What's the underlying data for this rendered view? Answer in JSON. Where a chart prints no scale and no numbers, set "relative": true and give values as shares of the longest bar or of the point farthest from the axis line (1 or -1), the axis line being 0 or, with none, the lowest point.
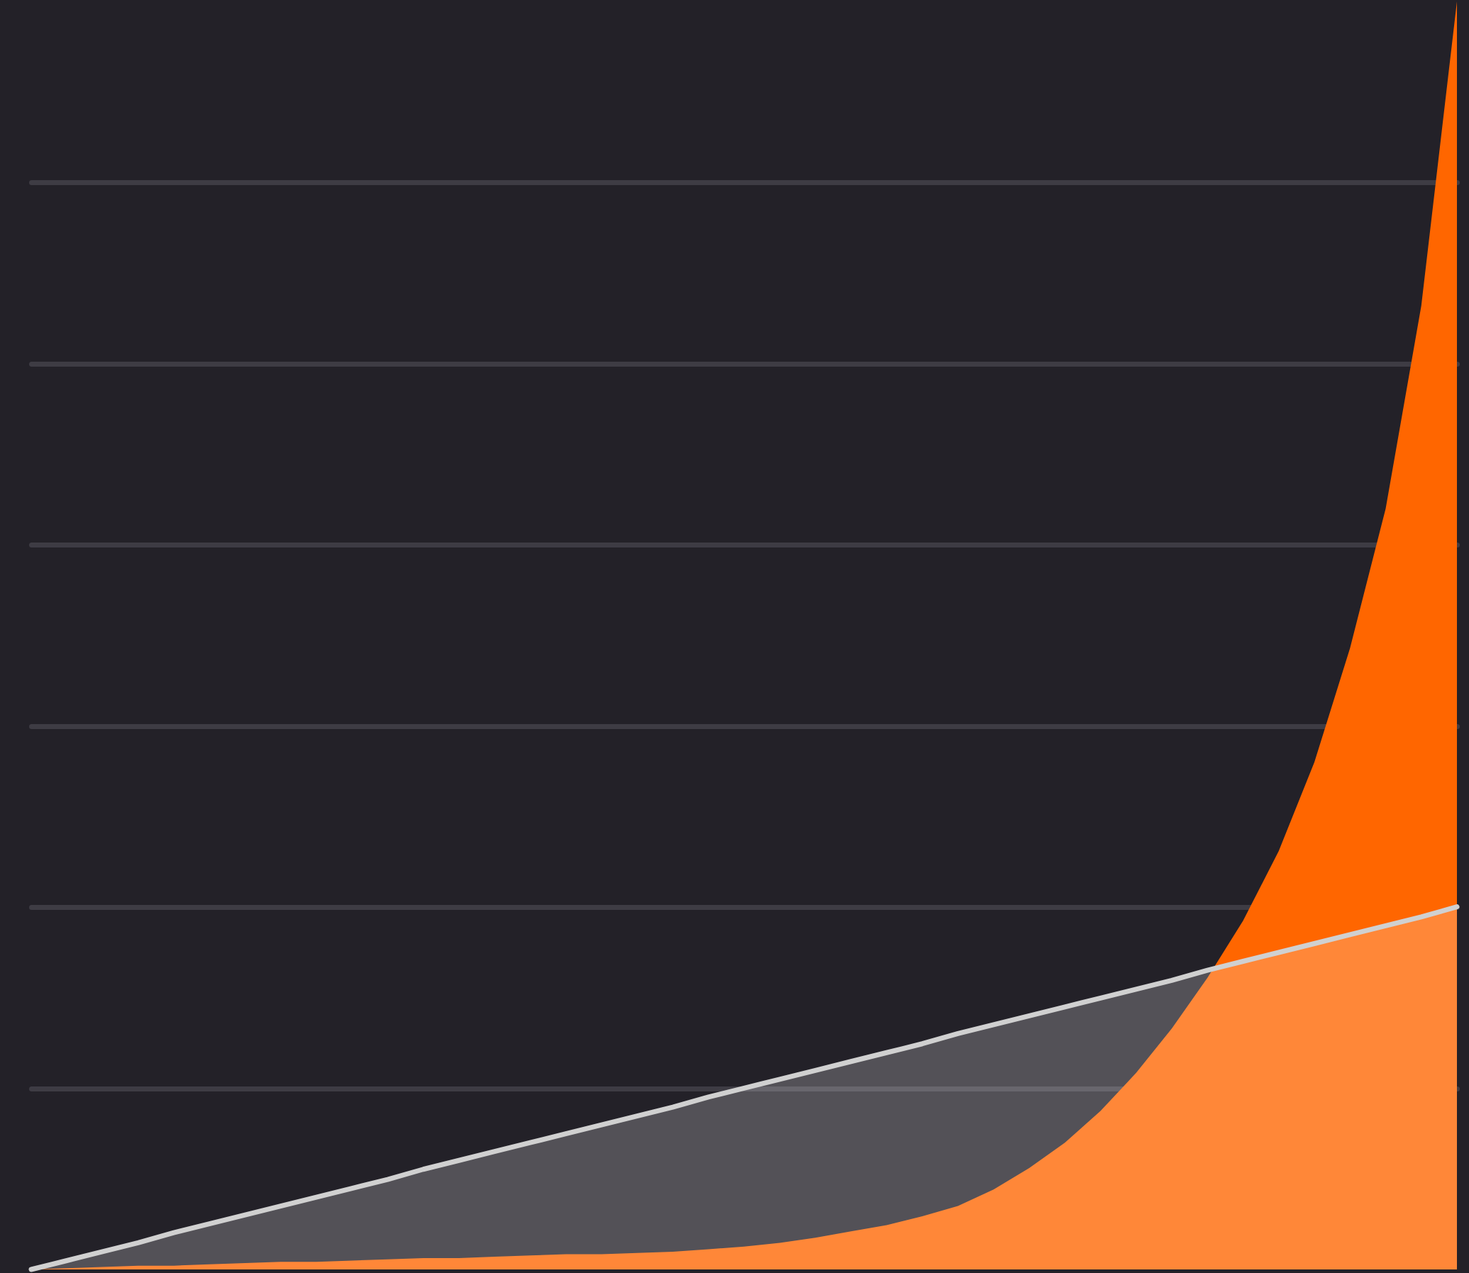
{
  "chart_data": {
    "type": "area",
    "relative": true,
    "grid": "y",
    "categories": [
      null,
      null,
      null,
      null,
      null,
      null,
      null,
      null,
      null,
      null,
      null,
      null,
      null,
      null,
      null,
      null,
      null,
      null,
      null,
      null,
      null,
      null,
      null,
      null,
      null,
      null,
      null,
      null,
      null,
      null,
      null,
      null,
      null,
      null,
      null,
      null,
      null,
      null,
      null,
      null,
      null
    ],
    "series": [
      {
        "color": "#ff6600",
        "values": [
          0,
          0.001,
          0.002,
          0.003,
          0.003,
          0.004,
          0.005,
          0.006,
          0.006,
          0.007,
          0.008,
          0.009,
          0.009,
          0.01,
          0.011,
          0.012,
          0.012,
          0.013,
          0.014,
          0.016,
          0.018,
          0.021,
          0.025,
          0.03,
          0.035,
          0.042,
          0.05,
          0.063,
          0.08,
          0.1,
          0.125,
          0.155,
          0.19,
          0.23,
          0.275,
          0.33,
          0.4,
          0.49,
          0.6,
          0.76,
          1
        ]
      },
      {
        "color": "#d0d0d0",
        "values": [
          0,
          0.007,
          0.014,
          0.021,
          0.029,
          0.036,
          0.043,
          0.05,
          0.057,
          0.064,
          0.071,
          0.079,
          0.086,
          0.093,
          0.1,
          0.107,
          0.114,
          0.121,
          0.128,
          0.136,
          0.143,
          0.15,
          0.157,
          0.164,
          0.171,
          0.178,
          0.186,
          0.193,
          0.2,
          0.207,
          0.214,
          0.221,
          0.228,
          0.236,
          0.243,
          0.25,
          0.257,
          0.264,
          0.271,
          0.278,
          0.286
        ]
      }
    ]
  }
}
